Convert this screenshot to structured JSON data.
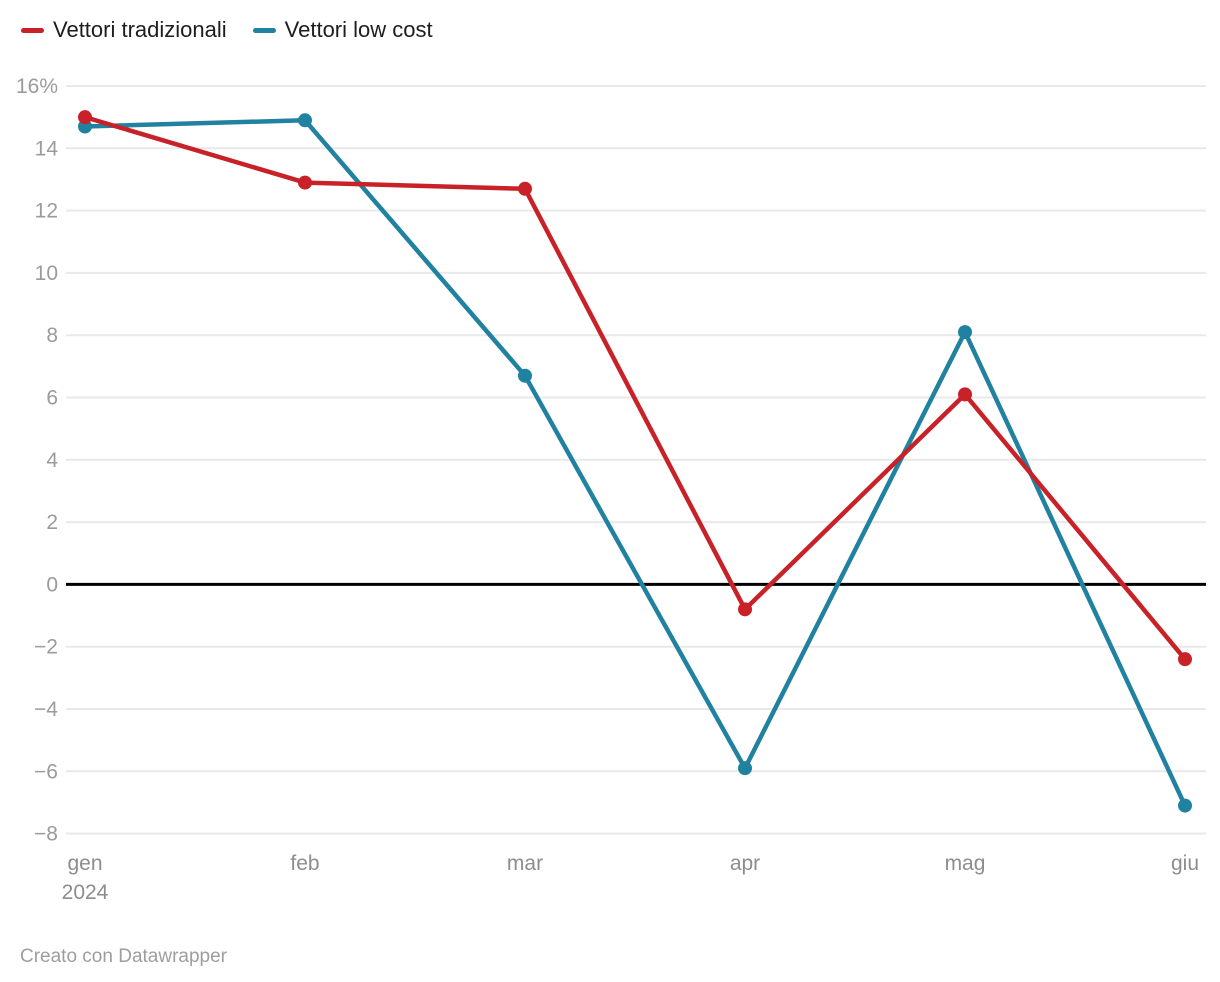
{
  "footer": {
    "credit": "Creato con Datawrapper"
  },
  "chart_data": {
    "type": "line",
    "title": "",
    "categories": [
      "gen",
      "feb",
      "mar",
      "apr",
      "mag",
      "giu"
    ],
    "x_axis_year": "2024",
    "series": [
      {
        "name": "Vettori tradizionali",
        "color": "#c82128",
        "values": [
          15.0,
          12.9,
          12.7,
          -0.8,
          6.1,
          -2.4
        ]
      },
      {
        "name": "Vettori low cost",
        "color": "#2081a0",
        "values": [
          14.7,
          14.9,
          6.7,
          -5.9,
          8.1,
          -7.1
        ]
      }
    ],
    "ylim": [
      -8,
      16
    ],
    "y_ticks": [
      {
        "value": 16,
        "label": "16%"
      },
      {
        "value": 14,
        "label": "14"
      },
      {
        "value": 12,
        "label": "12"
      },
      {
        "value": 10,
        "label": "10"
      },
      {
        "value": 8,
        "label": "8"
      },
      {
        "value": 6,
        "label": "6"
      },
      {
        "value": 4,
        "label": "4"
      },
      {
        "value": 2,
        "label": "2"
      },
      {
        "value": 0,
        "label": "0"
      },
      {
        "value": -2,
        "label": "−2"
      },
      {
        "value": -4,
        "label": "−4"
      },
      {
        "value": -6,
        "label": "−6"
      },
      {
        "value": -8,
        "label": "−8"
      }
    ],
    "grid": true,
    "grid_color": "#e9e9e9",
    "zero_line_color": "#000000",
    "axis_text_color": "#9b9b9b",
    "legend_position": "top-left"
  }
}
